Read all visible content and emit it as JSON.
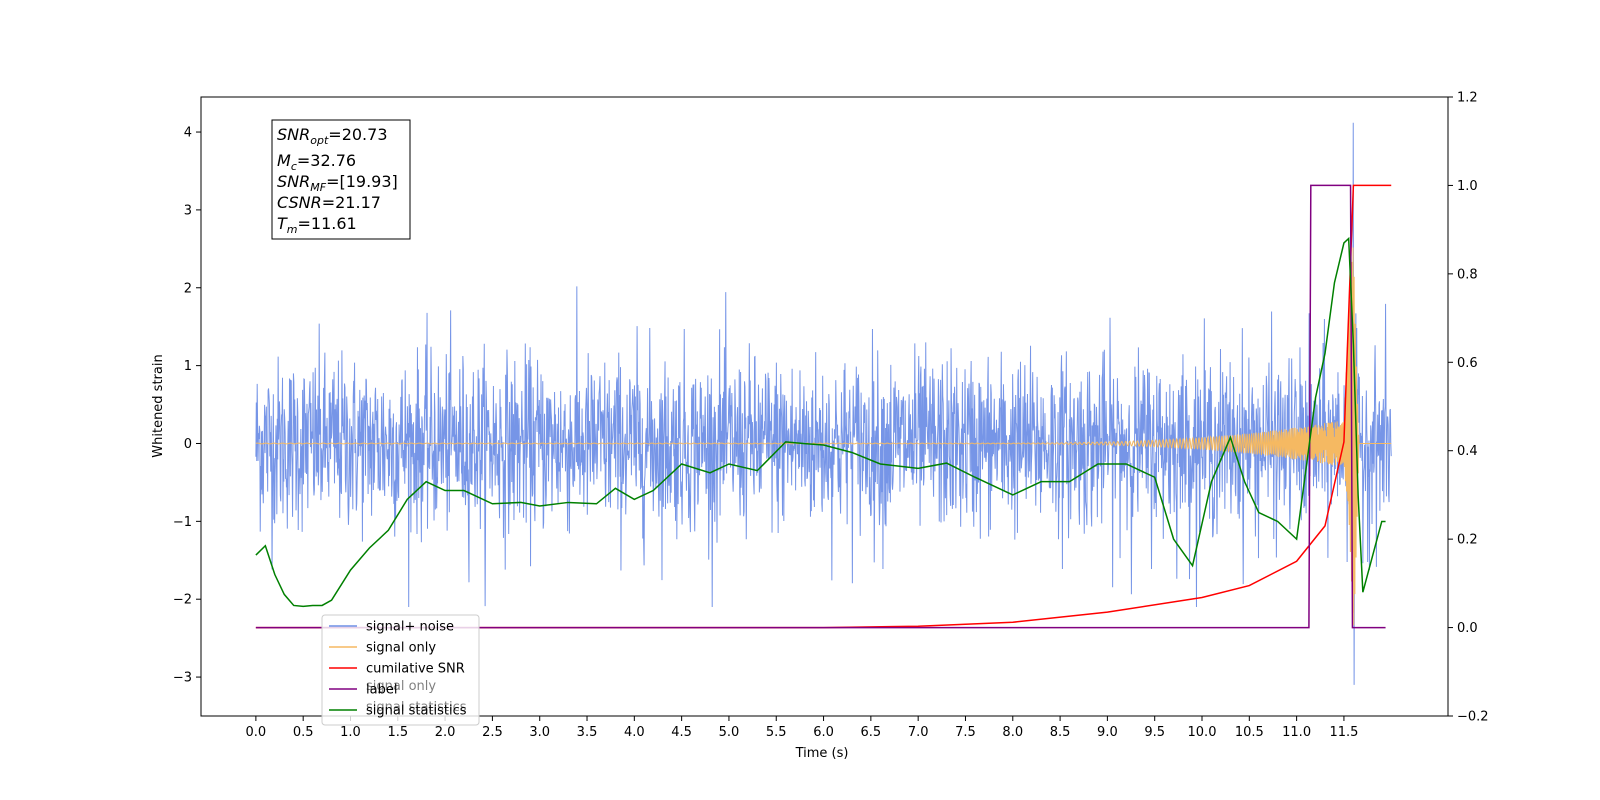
{
  "chart_data": {
    "type": "line",
    "xlabel": "Time (s)",
    "ylabel_left": "Whitened strain",
    "ylabel_right": "",
    "xlim": [
      -0.58,
      12.6
    ],
    "ylim_left": [
      -3.5,
      4.45
    ],
    "ylim_right": [
      -0.2,
      1.2
    ],
    "x_ticks": [
      "0.0",
      "0.5",
      "1.0",
      "1.5",
      "2.0",
      "2.5",
      "3.0",
      "3.5",
      "4.0",
      "4.5",
      "5.0",
      "5.5",
      "6.0",
      "6.5",
      "7.0",
      "7.5",
      "8.0",
      "8.5",
      "9.0",
      "9.5",
      "10.0",
      "10.5",
      "11.0",
      "11.5"
    ],
    "y_left_ticks": [
      "4",
      "3",
      "2",
      "1",
      "0",
      "−1",
      "−2",
      "−3"
    ],
    "y_right_ticks": [
      "1.2",
      "1.0",
      "0.8",
      "0.6",
      "0.4",
      "0.2",
      "0.0",
      "−0.2"
    ],
    "grid": false,
    "legend_position": "lower-left",
    "series": [
      {
        "name": "signal+ noise",
        "color": "#6f8fe6",
        "axis": "left",
        "x": [
          0,
          12
        ],
        "y_amplitude": 0.8,
        "peak": {
          "x": 11.6,
          "y": 4.12
        },
        "min": {
          "x": 11.6,
          "y": -3.1
        }
      },
      {
        "name": "signal only",
        "color": "#f5b962",
        "axis": "left",
        "x": [
          0,
          11.5,
          11.6,
          12
        ],
        "chirp_envelope": [
          0.0,
          0.3,
          2.9,
          0.0
        ]
      },
      {
        "name": "cumilative SNR",
        "color": "#ff0000",
        "axis": "right",
        "x": [
          0,
          6.0,
          7.0,
          8.0,
          9.0,
          10.0,
          10.5,
          11.0,
          11.3,
          11.5,
          11.6,
          11.62,
          12.0
        ],
        "y": [
          0,
          0,
          0.003,
          0.012,
          0.035,
          0.068,
          0.095,
          0.15,
          0.23,
          0.42,
          1.0,
          1.0,
          1.0
        ]
      },
      {
        "name": "label",
        "color": "#800080",
        "axis": "right",
        "x": [
          0,
          11.13,
          11.15,
          11.57,
          11.59,
          11.94
        ],
        "y": [
          0,
          0,
          1.0,
          1.0,
          0.0,
          0.0
        ]
      },
      {
        "name": "signal statistics",
        "color": "#008000",
        "axis": "right",
        "x": [
          0,
          0.1,
          0.2,
          0.3,
          0.4,
          0.5,
          0.6,
          0.7,
          0.8,
          1.0,
          1.2,
          1.4,
          1.6,
          1.8,
          2.0,
          2.2,
          2.5,
          2.8,
          3.0,
          3.3,
          3.6,
          3.8,
          4.0,
          4.2,
          4.5,
          4.8,
          5.0,
          5.3,
          5.6,
          5.8,
          6.0,
          6.3,
          6.6,
          7.0,
          7.3,
          7.6,
          8.0,
          8.3,
          8.6,
          8.9,
          9.2,
          9.5,
          9.7,
          9.9,
          10.1,
          10.3,
          10.45,
          10.6,
          10.8,
          11.0,
          11.2,
          11.3,
          11.4,
          11.5,
          11.55,
          11.6,
          11.65,
          11.7,
          11.8,
          11.9,
          11.94
        ],
        "y": [
          0.164,
          0.185,
          0.12,
          0.075,
          0.05,
          0.048,
          0.05,
          0.05,
          0.062,
          0.13,
          0.18,
          0.22,
          0.29,
          0.33,
          0.31,
          0.31,
          0.28,
          0.283,
          0.275,
          0.283,
          0.28,
          0.315,
          0.29,
          0.31,
          0.37,
          0.35,
          0.37,
          0.355,
          0.42,
          0.416,
          0.413,
          0.396,
          0.37,
          0.36,
          0.372,
          0.34,
          0.3,
          0.33,
          0.33,
          0.37,
          0.37,
          0.34,
          0.2,
          0.14,
          0.33,
          0.43,
          0.33,
          0.26,
          0.24,
          0.2,
          0.52,
          0.62,
          0.78,
          0.87,
          0.88,
          0.64,
          0.3,
          0.08,
          0.16,
          0.24,
          0.24
        ]
      }
    ],
    "annotation": {
      "lines": [
        {
          "main": "SNR",
          "sub": "opt",
          "value": "=20.73"
        },
        {
          "main": "M",
          "sub": "c",
          "value": "=32.76"
        },
        {
          "main": "SNR",
          "sub": "MF",
          "value": "=[19.93]"
        },
        {
          "main": "CSNR",
          "sub": "",
          "value": "=21.17"
        },
        {
          "main": "T",
          "sub": "m",
          "value": "=11.61"
        }
      ]
    },
    "ghost_legend_entries": [
      "signal only",
      "signal statistics"
    ]
  }
}
